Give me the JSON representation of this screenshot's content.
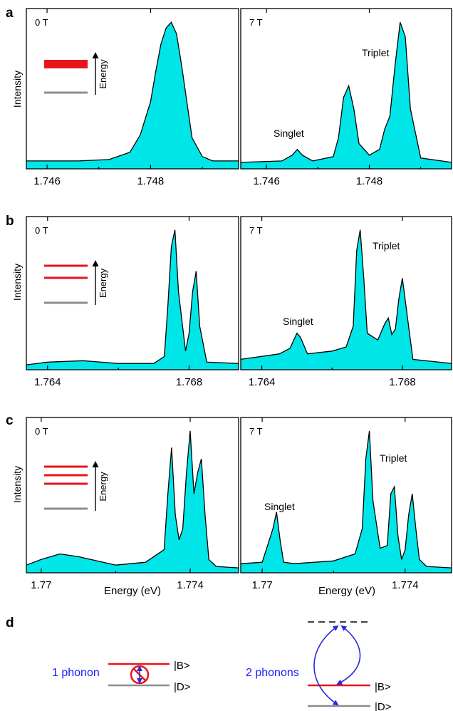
{
  "chart_data": [
    {
      "type": "area",
      "panel": "a",
      "field": "0 T",
      "ylabel": "Intensity",
      "xlabel": "",
      "xlim": [
        1.7456,
        1.7497
      ],
      "ylim": [
        0,
        1.06
      ],
      "xticks": [
        1.746,
        1.748
      ],
      "x": [
        1.7456,
        1.7466,
        1.7472,
        1.7476,
        1.7478,
        1.748,
        1.7481,
        1.7482,
        1.7483,
        1.7484,
        1.7485,
        1.7486,
        1.7487,
        1.7488,
        1.749,
        1.7492,
        1.7497
      ],
      "values": [
        0.04,
        0.04,
        0.05,
        0.1,
        0.22,
        0.45,
        0.66,
        0.85,
        0.96,
        1.0,
        0.92,
        0.7,
        0.45,
        0.2,
        0.07,
        0.04,
        0.04
      ],
      "inset_levels": {
        "upper": 1,
        "upper_style": "thick"
      },
      "inset_label": "Energy"
    },
    {
      "type": "area",
      "panel": "a",
      "field": "7 T",
      "xlabel": "",
      "xlim": [
        1.7455,
        1.7496
      ],
      "ylim": [
        0,
        1.06
      ],
      "xticks": [
        1.746,
        1.748
      ],
      "x": [
        1.7455,
        1.7463,
        1.7465,
        1.7466,
        1.7467,
        1.7469,
        1.7473,
        1.7474,
        1.7475,
        1.7476,
        1.7477,
        1.7478,
        1.748,
        1.7482,
        1.7483,
        1.7484,
        1.7485,
        1.7486,
        1.7487,
        1.7488,
        1.749,
        1.7496
      ],
      "values": [
        0.03,
        0.04,
        0.08,
        0.12,
        0.08,
        0.04,
        0.07,
        0.2,
        0.48,
        0.56,
        0.4,
        0.16,
        0.08,
        0.12,
        0.26,
        0.35,
        0.7,
        1.0,
        0.9,
        0.4,
        0.06,
        0.03
      ],
      "annotations": [
        "Singlet",
        "Triplet"
      ]
    },
    {
      "type": "area",
      "panel": "b",
      "field": "0 T",
      "ylabel": "Intensity",
      "xlabel": "",
      "xlim": [
        1.7634,
        1.7694
      ],
      "ylim": [
        0,
        1.06
      ],
      "xticks": [
        1.764,
        1.768
      ],
      "x": [
        1.7634,
        1.764,
        1.765,
        1.766,
        1.767,
        1.7673,
        1.7674,
        1.7675,
        1.7676,
        1.7677,
        1.7679,
        1.768,
        1.7681,
        1.7682,
        1.7683,
        1.7685,
        1.7694
      ],
      "values": [
        0.02,
        0.04,
        0.05,
        0.03,
        0.03,
        0.08,
        0.45,
        0.88,
        1.0,
        0.55,
        0.12,
        0.25,
        0.55,
        0.7,
        0.3,
        0.04,
        0.03
      ],
      "inset_levels": {
        "upper": 2,
        "upper_style": "thin"
      },
      "inset_label": "Energy"
    },
    {
      "type": "area",
      "panel": "b",
      "field": "7 T",
      "xlabel": "",
      "xlim": [
        1.7634,
        1.7694
      ],
      "ylim": [
        0,
        1.06
      ],
      "xticks": [
        1.764,
        1.768
      ],
      "x": [
        1.7634,
        1.7645,
        1.7648,
        1.765,
        1.7651,
        1.7653,
        1.766,
        1.7664,
        1.7666,
        1.7667,
        1.7668,
        1.7669,
        1.767,
        1.7673,
        1.7675,
        1.7676,
        1.7677,
        1.7678,
        1.7679,
        1.768,
        1.7681,
        1.7683,
        1.7694
      ],
      "values": [
        0.06,
        0.1,
        0.14,
        0.25,
        0.22,
        0.1,
        0.12,
        0.15,
        0.3,
        0.85,
        1.0,
        0.65,
        0.25,
        0.2,
        0.32,
        0.36,
        0.24,
        0.28,
        0.5,
        0.65,
        0.45,
        0.06,
        0.03
      ],
      "annotations": [
        "Singlet",
        "Triplet"
      ]
    },
    {
      "type": "area",
      "panel": "c",
      "field": "0 T",
      "ylabel": "Intensity",
      "xlabel": "Energy (eV)",
      "xlim": [
        1.7696,
        1.7753
      ],
      "ylim": [
        0,
        1.06
      ],
      "xticks": [
        1.77,
        1.774
      ],
      "xtick_labels": [
        "1.77",
        "1.774"
      ],
      "x": [
        1.7696,
        1.77,
        1.7705,
        1.771,
        1.772,
        1.7728,
        1.7733,
        1.7734,
        1.7735,
        1.7736,
        1.7737,
        1.7738,
        1.7739,
        1.774,
        1.7741,
        1.7742,
        1.7743,
        1.7744,
        1.7745,
        1.7747,
        1.7753
      ],
      "values": [
        0.04,
        0.08,
        0.12,
        0.1,
        0.04,
        0.06,
        0.15,
        0.55,
        0.88,
        0.4,
        0.22,
        0.3,
        0.7,
        1.0,
        0.55,
        0.7,
        0.8,
        0.4,
        0.08,
        0.03,
        0.02
      ],
      "inset_levels": {
        "upper": 3,
        "upper_style": "thin"
      },
      "inset_label": "Energy"
    },
    {
      "type": "area",
      "panel": "c",
      "field": "7 T",
      "xlabel": "Energy (eV)",
      "xlim": [
        1.7694,
        1.7753
      ],
      "ylim": [
        0,
        1.06
      ],
      "xticks": [
        1.77,
        1.774
      ],
      "xtick_labels": [
        "1.77",
        "1.774"
      ],
      "x": [
        1.7694,
        1.77,
        1.7703,
        1.7704,
        1.7705,
        1.7706,
        1.7709,
        1.772,
        1.7726,
        1.7728,
        1.7729,
        1.773,
        1.7731,
        1.7733,
        1.7735,
        1.7736,
        1.7737,
        1.7738,
        1.7739,
        1.774,
        1.7741,
        1.7742,
        1.7743,
        1.7744,
        1.7746,
        1.7753
      ],
      "values": [
        0.05,
        0.06,
        0.3,
        0.42,
        0.22,
        0.06,
        0.05,
        0.07,
        0.12,
        0.3,
        0.8,
        1.0,
        0.5,
        0.16,
        0.18,
        0.55,
        0.6,
        0.25,
        0.08,
        0.15,
        0.4,
        0.55,
        0.3,
        0.08,
        0.03,
        0.02
      ],
      "annotations": [
        "Singlet",
        "Triplet"
      ]
    }
  ],
  "labels": {
    "panel_a": "a",
    "panel_b": "b",
    "panel_c": "c",
    "panel_d": "d",
    "field_0": "0 T",
    "field_7": "7 T",
    "intensity": "Intensity",
    "energy": "Energy",
    "energy_ev": "Energy (eV)",
    "singlet": "Singlet",
    "triplet": "Triplet",
    "one_phonon": "1 phonon",
    "two_phonons": "2 phonons",
    "ket_b": "|B>",
    "ket_d": "|D>",
    "tick_1_746": "1.746",
    "tick_1_748": "1.748",
    "tick_1_764": "1.764",
    "tick_1_768": "1.768",
    "tick_1_77": "1.77",
    "tick_1_774": "1.774"
  },
  "colors": {
    "fill": "#00e5e8",
    "line": "#000000",
    "bright_level": "#e8141a",
    "dark_level": "#8c8c8c",
    "phonon_text": "#1a1aff",
    "arrow": "#2b2bd8"
  }
}
